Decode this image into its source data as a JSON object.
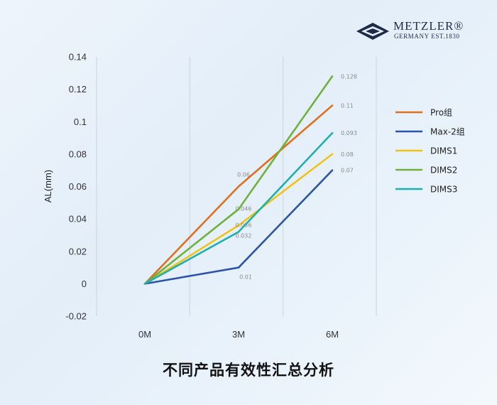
{
  "brand": {
    "name": "METZLER®",
    "tagline": "GERMANY EST.1830"
  },
  "chart_data": {
    "type": "line",
    "title": "不同产品有效性汇总分析",
    "xlabel": "",
    "ylabel": "AL(mm)",
    "categories": [
      "0M",
      "3M",
      "6M"
    ],
    "ylim": [
      -0.02,
      0.14
    ],
    "yticks": [
      -0.02,
      0,
      0.02,
      0.04,
      0.06,
      0.08,
      0.1,
      0.12,
      0.14
    ],
    "ytick_labels": [
      "-0.02",
      "0",
      "0.02",
      "0.04",
      "0.06",
      "0.08",
      "0.1",
      "0.12",
      "0.14"
    ],
    "grid": "vertical",
    "legend_position": "right",
    "series": [
      {
        "name": "Pro组",
        "color": "#e0701f",
        "values": [
          0,
          0.06,
          0.11
        ],
        "labels": [
          "",
          "0.06",
          "0.11"
        ]
      },
      {
        "name": "Max-2组",
        "color": "#2c55a7",
        "values": [
          0,
          0.01,
          0.07
        ],
        "labels": [
          "",
          "0.01",
          "0.07"
        ]
      },
      {
        "name": "DIMS1",
        "color": "#f1c21a",
        "values": [
          0,
          0.036,
          0.08
        ],
        "labels": [
          "",
          "0.036",
          "0.08"
        ]
      },
      {
        "name": "DIMS2",
        "color": "#6eb23c",
        "values": [
          0,
          0.046,
          0.128
        ],
        "labels": [
          "",
          "0.046",
          "0.128"
        ]
      },
      {
        "name": "DIMS3",
        "color": "#1fb0ad",
        "values": [
          0,
          0.032,
          0.093
        ],
        "labels": [
          "",
          "0.032",
          "0.093"
        ]
      }
    ]
  }
}
